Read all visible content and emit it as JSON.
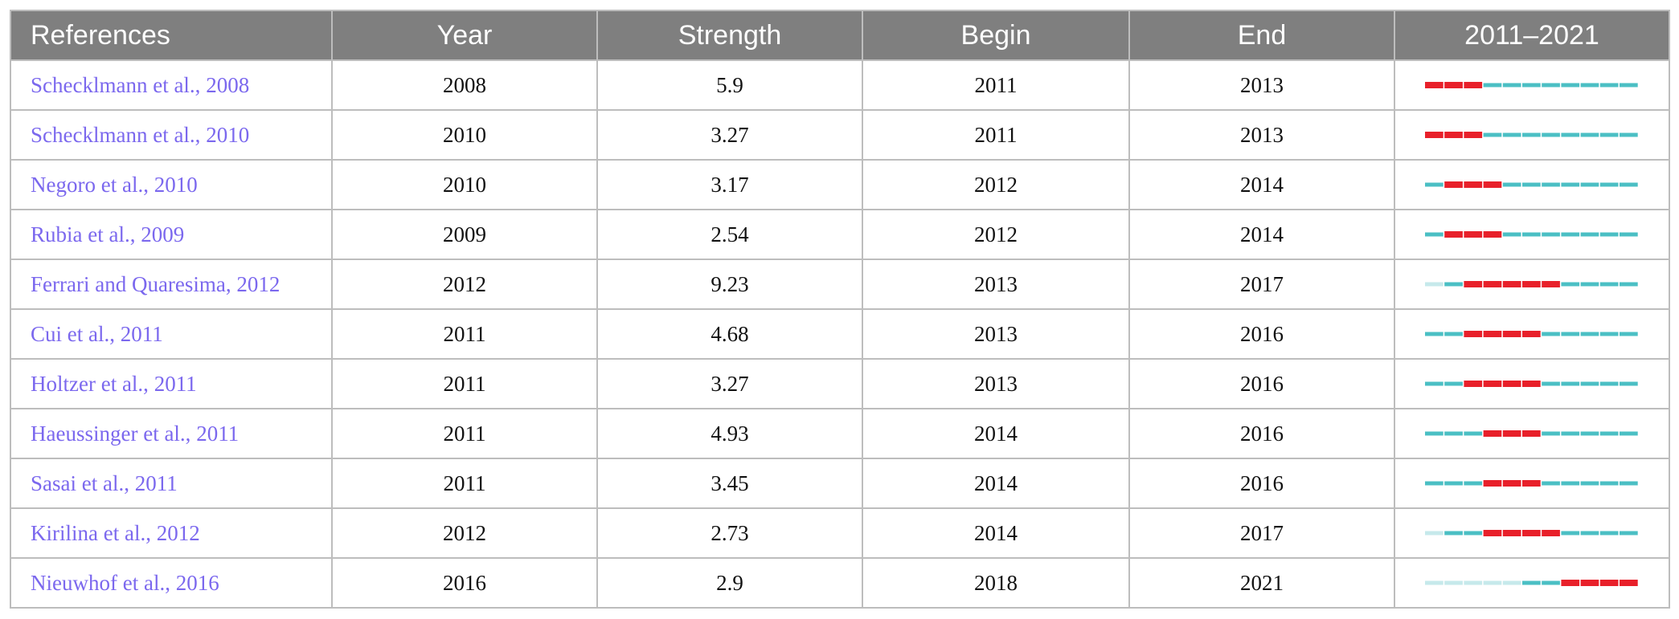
{
  "table": {
    "header": [
      "References",
      "Year",
      "Strength",
      "Begin",
      "End",
      "2011–2021"
    ],
    "rows": [
      {
        "authors": "Schecklmann et al.,",
        "cite_year": "2008",
        "year": 2008,
        "strength": 5.9,
        "begin": 2011,
        "end": 2013
      },
      {
        "authors": "Schecklmann et al.,",
        "cite_year": "2010",
        "year": 2010,
        "strength": 3.27,
        "begin": 2011,
        "end": 2013
      },
      {
        "authors": "Negoro et al.,",
        "cite_year": "2010",
        "year": 2010,
        "strength": 3.17,
        "begin": 2012,
        "end": 2014
      },
      {
        "authors": "Rubia et al.,",
        "cite_year": "2009",
        "year": 2009,
        "strength": 2.54,
        "begin": 2012,
        "end": 2014
      },
      {
        "authors": "Ferrari and Quaresima,",
        "cite_year": "2012",
        "year": 2012,
        "strength": 9.23,
        "begin": 2013,
        "end": 2017
      },
      {
        "authors": "Cui et al.,",
        "cite_year": "2011",
        "year": 2011,
        "strength": 4.68,
        "begin": 2013,
        "end": 2016
      },
      {
        "authors": "Holtzer et al.,",
        "cite_year": "2011",
        "year": 2011,
        "strength": 3.27,
        "begin": 2013,
        "end": 2016
      },
      {
        "authors": "Haeussinger et al.,",
        "cite_year": "2011",
        "year": 2011,
        "strength": 4.93,
        "begin": 2014,
        "end": 2016
      },
      {
        "authors": "Sasai et al.,",
        "cite_year": "2011",
        "year": 2011,
        "strength": 3.45,
        "begin": 2014,
        "end": 2016
      },
      {
        "authors": "Kirilina et al.,",
        "cite_year": "2012",
        "year": 2012,
        "strength": 2.73,
        "begin": 2014,
        "end": 2017
      },
      {
        "authors": "Nieuwhof et al.,",
        "cite_year": "2016",
        "year": 2016,
        "strength": 2.9,
        "begin": 2018,
        "end": 2021
      }
    ]
  }
}
